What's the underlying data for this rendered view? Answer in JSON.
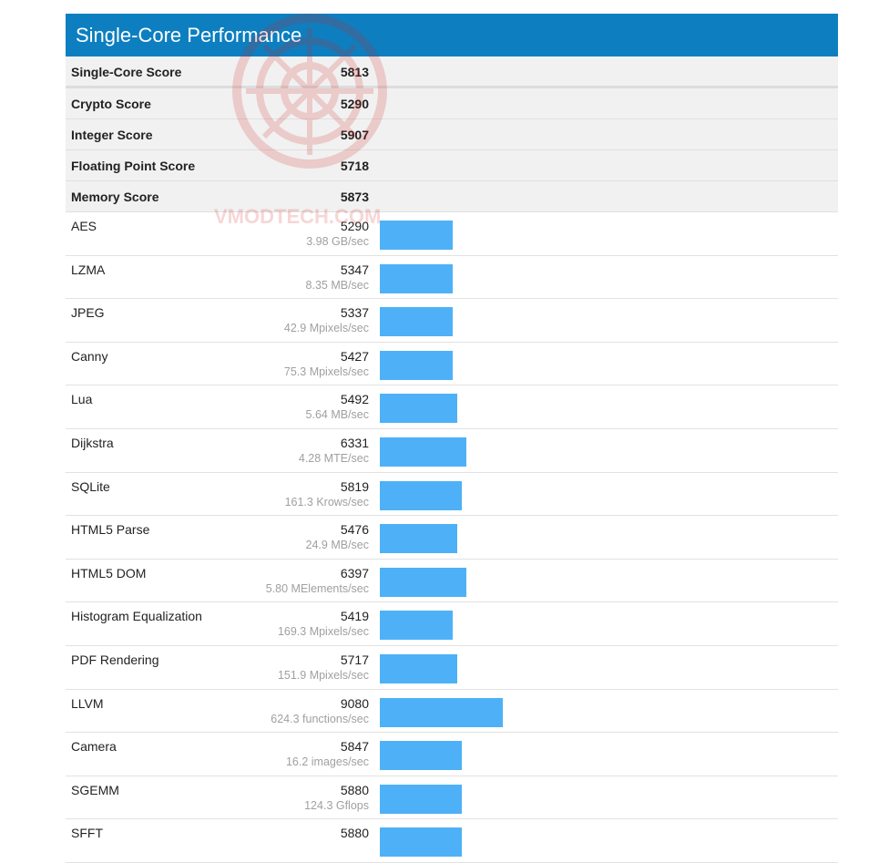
{
  "header": {
    "title": "Single-Core Performance"
  },
  "summary": [
    {
      "label": "Single-Core Score",
      "score": "5813"
    },
    {
      "label": "Crypto Score",
      "score": "5290"
    },
    {
      "label": "Integer Score",
      "score": "5907"
    },
    {
      "label": "Floating Point Score",
      "score": "5718"
    },
    {
      "label": "Memory Score",
      "score": "5873"
    }
  ],
  "watermark_text": "VMODTECH.COM",
  "bar_scale_max": 15000,
  "benchmarks": [
    {
      "name": "AES",
      "score": "5290",
      "rate": "3.98 GB/sec",
      "value": 5290
    },
    {
      "name": "LZMA",
      "score": "5347",
      "rate": "8.35 MB/sec",
      "value": 5347
    },
    {
      "name": "JPEG",
      "score": "5337",
      "rate": "42.9 Mpixels/sec",
      "value": 5337
    },
    {
      "name": "Canny",
      "score": "5427",
      "rate": "75.3 Mpixels/sec",
      "value": 5427
    },
    {
      "name": "Lua",
      "score": "5492",
      "rate": "5.64 MB/sec",
      "value": 5492
    },
    {
      "name": "Dijkstra",
      "score": "6331",
      "rate": "4.28 MTE/sec",
      "value": 6331
    },
    {
      "name": "SQLite",
      "score": "5819",
      "rate": "161.3 Krows/sec",
      "value": 5819
    },
    {
      "name": "HTML5 Parse",
      "score": "5476",
      "rate": "24.9 MB/sec",
      "value": 5476
    },
    {
      "name": "HTML5 DOM",
      "score": "6397",
      "rate": "5.80 MElements/sec",
      "value": 6397
    },
    {
      "name": "Histogram Equalization",
      "score": "5419",
      "rate": "169.3 Mpixels/sec",
      "value": 5419
    },
    {
      "name": "PDF Rendering",
      "score": "5717",
      "rate": "151.9 Mpixels/sec",
      "value": 5717
    },
    {
      "name": "LLVM",
      "score": "9080",
      "rate": "624.3 functions/sec",
      "value": 9080
    },
    {
      "name": "Camera",
      "score": "5847",
      "rate": "16.2 images/sec",
      "value": 5847
    },
    {
      "name": "SGEMM",
      "score": "5880",
      "rate": "124.3 Gflops",
      "value": 5880
    },
    {
      "name": "SFFT",
      "score": "5880",
      "rate": "",
      "value": 5880
    }
  ],
  "colors": {
    "header": "#0d7fc0",
    "bar": "#4eb1f7"
  }
}
